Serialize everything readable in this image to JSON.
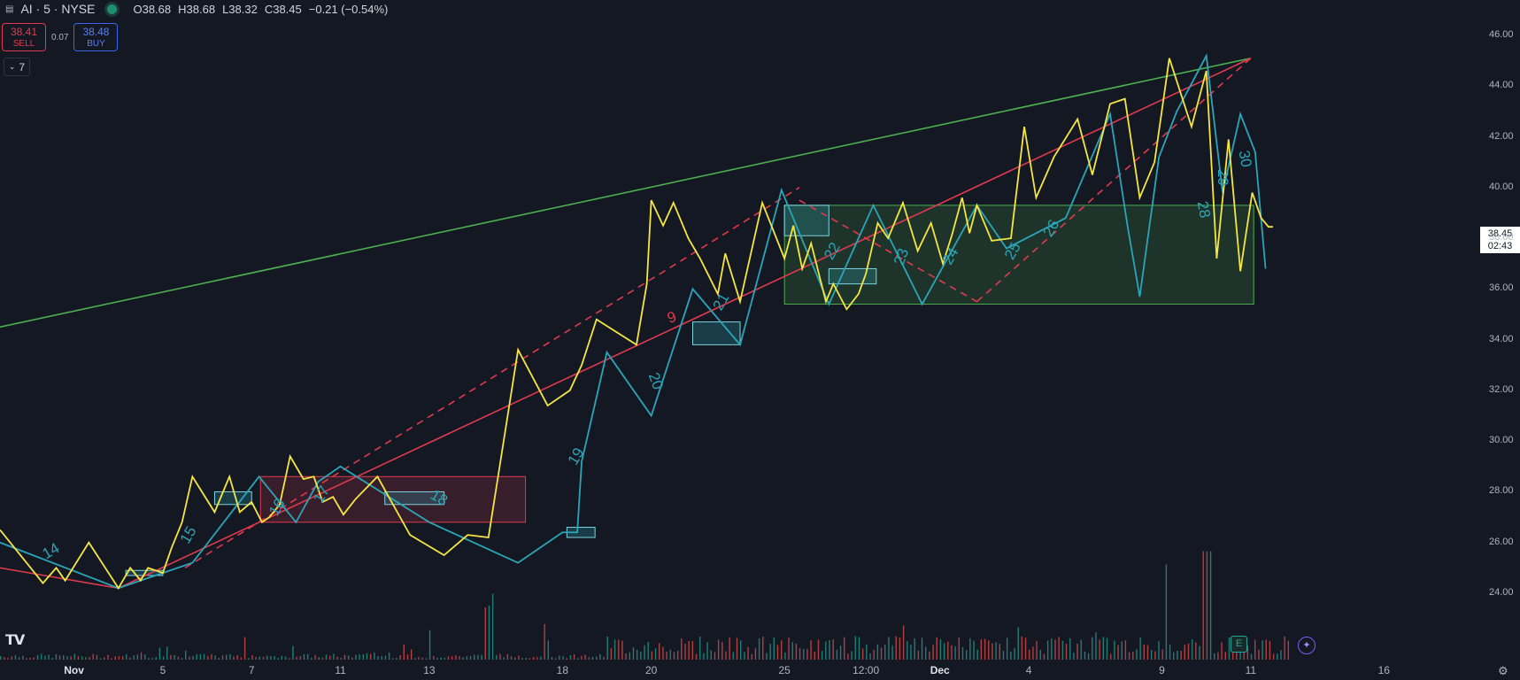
{
  "header": {
    "symbol": "AI · 5 · NYSE",
    "open": "O38.68",
    "high": "H38.68",
    "low": "L38.32",
    "close": "C38.45",
    "change": "−0.21 (−0.54%)"
  },
  "trade": {
    "sell_price": "38.41",
    "sell_label": "SELL",
    "spread": "0.07",
    "buy_price": "38.48",
    "buy_label": "BUY"
  },
  "indicators": {
    "count": "7"
  },
  "last_price": {
    "value": "38.45",
    "countdown": "02:43"
  },
  "earnings_marker": "E",
  "colors": {
    "background": "#141823",
    "yellow_line": "#f5e642",
    "teal_line": "#2aa6b8",
    "red_line": "#e03a4e",
    "green_line": "#4caf50",
    "up_volume": "#26a69a",
    "down_volume": "#ef5350"
  },
  "chart_data": {
    "type": "line",
    "title": "",
    "ylim": [
      22.0,
      47.0
    ],
    "xlim": [
      0,
      1000
    ],
    "y_ticks": [
      "46.00",
      "44.00",
      "42.00",
      "40.00",
      "38.00",
      "36.00",
      "34.00",
      "32.00",
      "30.00",
      "28.00",
      "26.00",
      "24.00"
    ],
    "x_ticks": [
      {
        "label": "Nov",
        "x": 50,
        "bold": true
      },
      {
        "label": "5",
        "x": 110
      },
      {
        "label": "7",
        "x": 170
      },
      {
        "label": "11",
        "x": 230
      },
      {
        "label": "13",
        "x": 290
      },
      {
        "label": "18",
        "x": 380
      },
      {
        "label": "20",
        "x": 440
      },
      {
        "label": "25",
        "x": 530
      },
      {
        "label": "12:00",
        "x": 585
      },
      {
        "label": "Dec",
        "x": 635,
        "bold": true
      },
      {
        "label": "4",
        "x": 695
      },
      {
        "label": "9",
        "x": 785
      },
      {
        "label": "11",
        "x": 845
      },
      {
        "label": "16",
        "x": 935
      }
    ],
    "price_series": {
      "name": "",
      "x": [
        0,
        29,
        38,
        44,
        60,
        80,
        88,
        95,
        100,
        110,
        116,
        123,
        130,
        145,
        155,
        162,
        170,
        177,
        182,
        189,
        196,
        205,
        212,
        218,
        225,
        232,
        240,
        255,
        277,
        300,
        316,
        330,
        350,
        370,
        385,
        393,
        403,
        430,
        437,
        440,
        448,
        455,
        465,
        473,
        479,
        485,
        490,
        500,
        515,
        530,
        536,
        542,
        548,
        558,
        563,
        572,
        580,
        585,
        593,
        600,
        610,
        620,
        629,
        637,
        643,
        650,
        655,
        660,
        670,
        683,
        692,
        700,
        712,
        728,
        738,
        750,
        760,
        770,
        780,
        790,
        805,
        815,
        822,
        830,
        838,
        846,
        852,
        857,
        860
      ],
      "y": [
        26.5,
        24.4,
        25,
        24.5,
        26,
        24.2,
        25,
        24.5,
        25,
        24.8,
        25.8,
        26.8,
        28.6,
        27.2,
        28.6,
        27.2,
        27.6,
        26.8,
        27,
        27.5,
        29.4,
        28.5,
        28.6,
        27.6,
        27.8,
        27.1,
        27.7,
        28.6,
        26.3,
        25.5,
        26.3,
        26.2,
        33.6,
        31.4,
        32,
        33,
        34.8,
        33.8,
        36.2,
        39.5,
        38.5,
        39.4,
        38,
        37.2,
        36.5,
        35.8,
        37.4,
        35.5,
        39.4,
        37.2,
        38.5,
        36.8,
        37.8,
        35.5,
        36.2,
        35.2,
        35.8,
        36.6,
        38.6,
        38,
        39.4,
        37.5,
        38.6,
        37,
        38.1,
        39.6,
        38.2,
        39.3,
        37.9,
        38,
        42.4,
        39.6,
        41.2,
        42.7,
        40.5,
        43.3,
        43.5,
        39.6,
        41,
        45.1,
        42.4,
        44.6,
        37.2,
        41.9,
        36.7,
        39.8,
        38.8,
        38.45,
        38.45
      ]
    },
    "zigzag_series": {
      "name": "",
      "x": [
        0,
        80,
        110,
        130,
        175,
        200,
        215,
        230,
        290,
        350,
        380,
        390,
        393,
        410,
        440,
        468,
        500,
        528,
        560,
        590,
        623,
        660,
        680,
        720,
        750,
        762,
        770,
        783,
        795,
        815,
        826,
        838,
        848,
        855
      ],
      "y": [
        26,
        24.2,
        24.8,
        25.2,
        28.6,
        26.8,
        28.4,
        29,
        26.8,
        25.2,
        26.4,
        26.4,
        29.2,
        33.5,
        31,
        36,
        33.8,
        39.9,
        35.4,
        39.3,
        35.4,
        39.3,
        37.6,
        38.8,
        42.9,
        38.4,
        35.7,
        41.2,
        43,
        45.2,
        39.8,
        42.9,
        41.4,
        36.8
      ]
    },
    "wave_labels": [
      "14",
      "15",
      "16",
      "17",
      "18",
      "19",
      "20",
      "21",
      "22",
      "23",
      "24",
      "25",
      "26",
      "28",
      "29",
      "30",
      "9"
    ],
    "trendlines": [
      {
        "name": "",
        "color": "#4caf50",
        "style": "solid",
        "x": [
          0,
          845
        ],
        "y": [
          34.5,
          45.1
        ]
      },
      {
        "name": "",
        "color": "#e03a4e",
        "style": "solid",
        "x": [
          0,
          80,
          845
        ],
        "y": [
          25.0,
          24.2,
          45.1
        ]
      },
      {
        "name": "",
        "color": "#e03a4e",
        "style": "dashed",
        "x": [
          125,
          540
        ],
        "y": [
          25.0,
          40.0
        ]
      },
      {
        "name": "",
        "color": "#e03a4e",
        "style": "dashed",
        "x": [
          660,
          845
        ],
        "y": [
          35.5,
          45.1
        ]
      },
      {
        "name": "",
        "color": "#e03a4e",
        "style": "dashed",
        "x": [
          540,
          660
        ],
        "y": [
          39.5,
          35.5
        ]
      }
    ],
    "boxes": [
      {
        "kind": "range",
        "color": "#e03a4e",
        "x0": 176,
        "x1": 355,
        "y0": 28.6,
        "y1": 26.8
      },
      {
        "kind": "range",
        "color": "#4caf50",
        "x0": 530,
        "x1": 847,
        "y0": 39.3,
        "y1": 35.4
      },
      {
        "kind": "zone",
        "color": "#2aa6b8",
        "x0": 145,
        "x1": 170,
        "y0": 28.0,
        "y1": 27.5
      },
      {
        "kind": "zone",
        "color": "#2aa6b8",
        "x0": 85,
        "x1": 110,
        "y0": 24.9,
        "y1": 24.7
      },
      {
        "kind": "zone",
        "color": "#2aa6b8",
        "x0": 260,
        "x1": 300,
        "y0": 28.0,
        "y1": 27.5
      },
      {
        "kind": "zone",
        "color": "#2aa6b8",
        "x0": 383,
        "x1": 402,
        "y0": 26.6,
        "y1": 26.2
      },
      {
        "kind": "zone",
        "color": "#2aa6b8",
        "x0": 468,
        "x1": 500,
        "y0": 34.7,
        "y1": 33.8
      },
      {
        "kind": "zone",
        "color": "#2aa6b8",
        "x0": 530,
        "x1": 560,
        "y0": 39.3,
        "y1": 38.1
      },
      {
        "kind": "zone",
        "color": "#2aa6b8",
        "x0": 560,
        "x1": 592,
        "y0": 36.8,
        "y1": 36.2
      }
    ],
    "volume": {
      "ylim": [
        0,
        100
      ],
      "note_levels": [
        12,
        8,
        10,
        6,
        9,
        7,
        14,
        9,
        11,
        8,
        6,
        10,
        30,
        45,
        35,
        25,
        28,
        20,
        22,
        26,
        24,
        18,
        15,
        20,
        16,
        22,
        18,
        14,
        24,
        30,
        20,
        35,
        90,
        60,
        45,
        40,
        30
      ]
    }
  }
}
